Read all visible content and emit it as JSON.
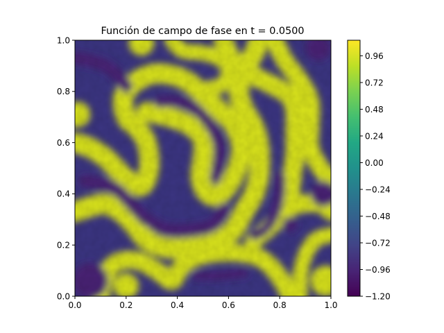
{
  "chart_data": {
    "type": "heatmap",
    "title": "Función de campo de fase en t = 0.0500",
    "xlabel": "",
    "ylabel": "",
    "xlim": [
      0.0,
      1.0
    ],
    "ylim": [
      0.0,
      1.0
    ],
    "x_ticks": [
      "0.0",
      "0.2",
      "0.4",
      "0.6",
      "0.8",
      "1.0"
    ],
    "y_ticks": [
      "0.0",
      "0.2",
      "0.4",
      "0.6",
      "0.8",
      "1.0"
    ],
    "colormap": "viridis",
    "colorbar": {
      "range": [
        -1.2,
        1.1
      ],
      "ticks": [
        "−1.20",
        "−0.96",
        "−0.72",
        "−0.48",
        "−0.24",
        "0.00",
        "0.24",
        "0.48",
        "0.72",
        "0.96"
      ],
      "tick_values": [
        -1.2,
        -0.96,
        -0.72,
        -0.48,
        -0.24,
        0.0,
        0.24,
        0.48,
        0.72,
        0.96
      ]
    },
    "field_low": -1.0,
    "field_high": 1.0,
    "high_phase_regions": [
      {
        "name": "outer-arc",
        "points": [
          [
            0.0,
            0.6
          ],
          [
            0.06,
            0.58
          ],
          [
            0.12,
            0.54
          ],
          [
            0.16,
            0.5
          ],
          [
            0.2,
            0.46
          ],
          [
            0.26,
            0.43
          ],
          [
            0.29,
            0.5
          ],
          [
            0.28,
            0.6
          ],
          [
            0.24,
            0.66
          ],
          [
            0.2,
            0.7
          ],
          [
            0.19,
            0.78
          ],
          [
            0.24,
            0.84
          ],
          [
            0.32,
            0.87
          ],
          [
            0.42,
            0.85
          ],
          [
            0.5,
            0.79
          ],
          [
            0.56,
            0.73
          ],
          [
            0.62,
            0.67
          ],
          [
            0.65,
            0.58
          ],
          [
            0.63,
            0.49
          ],
          [
            0.59,
            0.42
          ],
          [
            0.55,
            0.39
          ],
          [
            0.51,
            0.41
          ],
          [
            0.49,
            0.47
          ],
          [
            0.5,
            0.54
          ],
          [
            0.5,
            0.61
          ],
          [
            0.46,
            0.66
          ],
          [
            0.4,
            0.69
          ],
          [
            0.33,
            0.71
          ],
          [
            0.28,
            0.72
          ]
        ],
        "width": 0.078
      },
      {
        "name": "left-loop",
        "points": [
          [
            0.0,
            0.33
          ],
          [
            0.06,
            0.35
          ],
          [
            0.12,
            0.36
          ],
          [
            0.18,
            0.33
          ],
          [
            0.23,
            0.28
          ],
          [
            0.28,
            0.22
          ],
          [
            0.35,
            0.19
          ],
          [
            0.45,
            0.19
          ],
          [
            0.55,
            0.21
          ],
          [
            0.62,
            0.26
          ],
          [
            0.66,
            0.33
          ],
          [
            0.7,
            0.4
          ],
          [
            0.72,
            0.48
          ],
          [
            0.72,
            0.58
          ],
          [
            0.7,
            0.66
          ],
          [
            0.66,
            0.73
          ],
          [
            0.64,
            0.8
          ],
          [
            0.66,
            0.88
          ],
          [
            0.7,
            0.95
          ],
          [
            0.72,
            1.0
          ]
        ],
        "width": 0.08
      },
      {
        "name": "top-arc",
        "points": [
          [
            0.38,
            1.0
          ],
          [
            0.42,
            0.96
          ],
          [
            0.5,
            0.95
          ],
          [
            0.56,
            0.93
          ],
          [
            0.6,
            0.89
          ],
          [
            0.58,
            0.83
          ],
          [
            0.52,
            0.81
          ]
        ],
        "width": 0.06
      },
      {
        "name": "top-right-hook",
        "points": [
          [
            0.58,
            1.0
          ],
          [
            0.61,
            0.93
          ],
          [
            0.66,
            0.88
          ],
          [
            0.72,
            0.85
          ],
          [
            0.78,
            0.82
          ],
          [
            0.84,
            0.78
          ],
          [
            0.86,
            0.72
          ],
          [
            0.86,
            0.64
          ],
          [
            0.86,
            0.56
          ],
          [
            0.85,
            0.48
          ],
          [
            0.84,
            0.4
          ]
        ],
        "width": 0.075
      },
      {
        "name": "right-band",
        "points": [
          [
            0.78,
            1.0
          ],
          [
            0.82,
            0.92
          ],
          [
            0.88,
            0.84
          ],
          [
            0.92,
            0.76
          ],
          [
            0.92,
            0.66
          ],
          [
            0.92,
            0.58
          ],
          [
            0.96,
            0.5
          ],
          [
            1.0,
            0.46
          ]
        ],
        "width": 0.07
      },
      {
        "name": "bottom-s",
        "points": [
          [
            0.1,
            0.0
          ],
          [
            0.12,
            0.08
          ],
          [
            0.16,
            0.13
          ],
          [
            0.24,
            0.14
          ],
          [
            0.32,
            0.1
          ],
          [
            0.38,
            0.06
          ],
          [
            0.42,
            0.12
          ],
          [
            0.5,
            0.16
          ],
          [
            0.62,
            0.17
          ],
          [
            0.72,
            0.15
          ],
          [
            0.78,
            0.1
          ],
          [
            0.82,
            0.04
          ],
          [
            0.84,
            0.0
          ]
        ],
        "width": 0.07
      },
      {
        "name": "lower-right",
        "points": [
          [
            0.7,
            0.22
          ],
          [
            0.76,
            0.27
          ],
          [
            0.82,
            0.33
          ],
          [
            0.88,
            0.36
          ],
          [
            0.96,
            0.36
          ],
          [
            1.0,
            0.33
          ]
        ],
        "width": 0.07
      },
      {
        "name": "right-lower-band",
        "points": [
          [
            0.88,
            0.0
          ],
          [
            0.88,
            0.08
          ],
          [
            0.9,
            0.16
          ],
          [
            0.94,
            0.22
          ],
          [
            1.0,
            0.24
          ]
        ],
        "width": 0.06
      }
    ],
    "low_phase_regions": [
      {
        "name": "top-left-strip",
        "points": [
          [
            0.0,
            0.93
          ],
          [
            0.06,
            0.92
          ],
          [
            0.12,
            0.9
          ],
          [
            0.17,
            0.86
          ],
          [
            0.2,
            0.82
          ]
        ],
        "width": 0.05
      },
      {
        "name": "inner-arc",
        "points": [
          [
            0.33,
            0.76
          ],
          [
            0.4,
            0.76
          ],
          [
            0.46,
            0.74
          ],
          [
            0.52,
            0.68
          ],
          [
            0.56,
            0.6
          ],
          [
            0.56,
            0.52
          ],
          [
            0.55,
            0.46
          ]
        ],
        "width": 0.045
      },
      {
        "name": "left-lobe",
        "points": [
          [
            0.04,
            0.45
          ],
          [
            0.1,
            0.44
          ],
          [
            0.16,
            0.42
          ],
          [
            0.22,
            0.36
          ],
          [
            0.28,
            0.3
          ],
          [
            0.36,
            0.26
          ],
          [
            0.46,
            0.26
          ],
          [
            0.54,
            0.28
          ],
          [
            0.58,
            0.34
          ]
        ],
        "width": 0.05
      },
      {
        "name": "lower-capsule",
        "points": [
          [
            0.47,
            0.08
          ],
          [
            0.56,
            0.08
          ],
          [
            0.66,
            0.09
          ]
        ],
        "width": 0.035
      },
      {
        "name": "right-vertical",
        "points": [
          [
            0.8,
            0.47
          ],
          [
            0.8,
            0.4
          ],
          [
            0.78,
            0.32
          ],
          [
            0.74,
            0.26
          ],
          [
            0.7,
            0.24
          ]
        ],
        "width": 0.04
      }
    ],
    "low_phase_blobs": [
      {
        "name": "dot",
        "cx": 0.84,
        "cy": 0.28,
        "r": 0.03
      },
      {
        "name": "right-edge-blob",
        "cx": 0.97,
        "cy": 0.4,
        "r": 0.05
      },
      {
        "name": "top-right-corner",
        "cx": 0.95,
        "cy": 0.97,
        "r": 0.05
      },
      {
        "name": "bottom-left-blob",
        "cx": 0.06,
        "cy": 0.06,
        "r": 0.07
      }
    ],
    "high_phase_blobs": [
      {
        "name": "top-left-cap",
        "cx": 0.26,
        "cy": 0.99,
        "r": 0.05
      },
      {
        "name": "left-edge-cap",
        "cx": 0.01,
        "cy": 0.71,
        "r": 0.05
      },
      {
        "name": "bottom-left-cap",
        "cx": 0.2,
        "cy": 0.04,
        "r": 0.05
      },
      {
        "name": "bottom-right-cap",
        "cx": 0.98,
        "cy": 0.06,
        "r": 0.06
      }
    ]
  }
}
